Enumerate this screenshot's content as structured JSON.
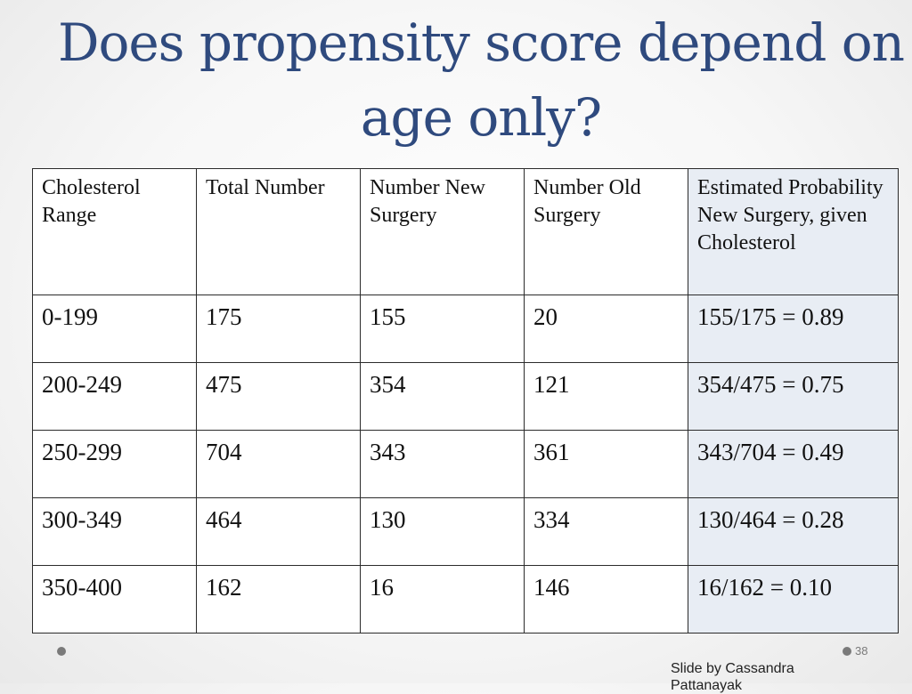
{
  "slide": {
    "title": "Does propensity score depend on age only?",
    "page_number": "38",
    "credit": "Slide by Cassandra Pattanayak"
  },
  "table": {
    "headers": [
      "Cholesterol Range",
      "Total Number",
      "Number New Surgery",
      "Number Old Surgery",
      "Estimated Probability New Surgery, given Cholesterol"
    ],
    "rows": [
      [
        "0-199",
        "175",
        "155",
        "20",
        "155/175 = 0.89"
      ],
      [
        "200-249",
        "475",
        "354",
        "121",
        "354/475 = 0.75"
      ],
      [
        "250-299",
        "704",
        "343",
        "361",
        "343/704 = 0.49"
      ],
      [
        "300-349",
        "464",
        "130",
        "334",
        "130/464 = 0.28"
      ],
      [
        "350-400",
        "162",
        "16",
        "146",
        "16/162 = 0.10"
      ]
    ]
  },
  "colors": {
    "title": "#2f4a7e",
    "shaded_column": "#e8edf4"
  }
}
